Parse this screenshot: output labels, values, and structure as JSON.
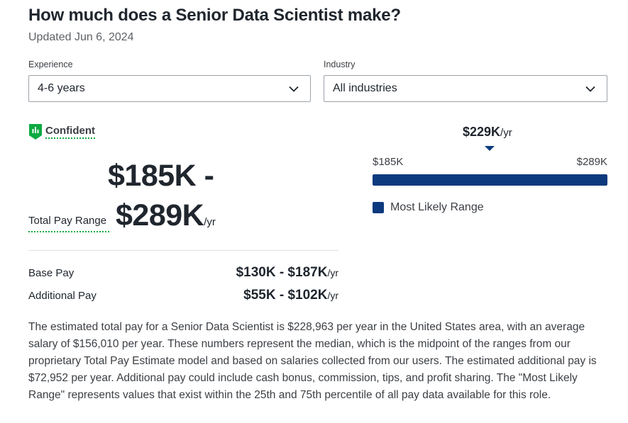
{
  "header": {
    "title": "How much does a Senior Data Scientist make?",
    "updated": "Updated Jun 6, 2024"
  },
  "filters": {
    "experience": {
      "label": "Experience",
      "value": "4-6 years",
      "icon": "chevron-down-icon"
    },
    "industry": {
      "label": "Industry",
      "value": "All industries",
      "icon": "chevron-down-icon"
    }
  },
  "confidence": {
    "label": "Confident",
    "icon": "bar-chart-shield-icon",
    "color": "#0caa41"
  },
  "total_pay": {
    "label": "Total Pay Range",
    "range_line1": "$185K -",
    "range_line2": "$289K",
    "unit": "/yr"
  },
  "breakdown": {
    "base": {
      "label": "Base Pay",
      "range": "$130K - $187K",
      "unit": "/yr"
    },
    "additional": {
      "label": "Additional Pay",
      "range": "$55K - $102K",
      "unit": "/yr"
    }
  },
  "range_chart": {
    "median_label": "$229K",
    "median_unit": "/yr",
    "min_label": "$185K",
    "max_label": "$289K",
    "min": 185,
    "max": 289,
    "median": 229,
    "likely_low": 185,
    "likely_high": 289,
    "legend": "Most Likely Range",
    "bar_color": "#0d3a7e"
  },
  "description": "The estimated total pay for a Senior Data Scientist is $228,963 per year in the United States area, with an average salary of $156,010 per year. These numbers represent the median, which is the midpoint of the ranges from our proprietary Total Pay Estimate model and based on salaries collected from our users. The estimated additional pay is $72,952 per year. Additional pay could include cash bonus, commission, tips, and profit sharing. The \"Most Likely Range\" represents values that exist within the 25th and 75th percentile of all pay data available for this role."
}
